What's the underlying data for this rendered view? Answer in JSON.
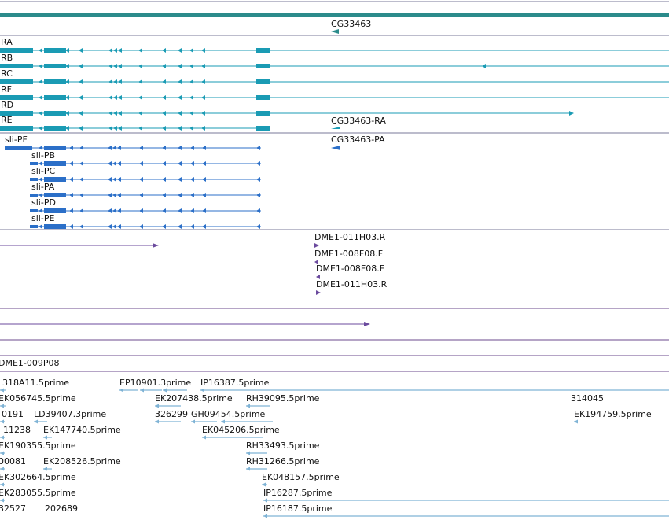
{
  "colors": {
    "gene_track": "#2b8b8b",
    "transcript": "#1a9bb4",
    "protein": "#2b6fc8",
    "clone": "#6b4a9e",
    "est": "#7fb3d5",
    "separator": "#7a7a9a"
  },
  "gene": {
    "name": "CG33463"
  },
  "transcripts": [
    {
      "label": "RA"
    },
    {
      "label": "RB"
    },
    {
      "label": "RC"
    },
    {
      "label": "RF"
    },
    {
      "label": "RD"
    },
    {
      "label": "RE"
    }
  ],
  "cg_transcript_label": "CG33463-RA",
  "cg_protein_label": "CG33463-PA",
  "proteins": [
    {
      "label": "sli-PF"
    },
    {
      "label": "sli-PB"
    },
    {
      "label": "sli-PC"
    },
    {
      "label": "sli-PA"
    },
    {
      "label": "sli-PD"
    },
    {
      "label": "sli-PE"
    }
  ],
  "clones": [
    {
      "label": "DME1-011H03.R"
    },
    {
      "label": "DME1-008F08.F"
    },
    {
      "label": "DME1-008F08.F"
    },
    {
      "label": "DME1-011H03.R"
    }
  ],
  "bac_label": "DME1-009P08",
  "ests": [
    "318A11.5prime",
    "EP10901.3prime",
    "IP16387.5prime",
    "EK056745.5prime",
    "EK207438.5prime",
    "RH39095.5prime",
    "314045",
    "0191",
    "LD39407.3prime",
    "326299",
    "GH09454.5prime",
    "EK194759.5prime",
    "11238",
    "EK147740.5prime",
    "EK045206.5prime",
    "EK190355.5prime",
    "RH33493.5prime",
    "00081",
    "EK208526.5prime",
    "RH31266.5prime",
    "EK302664.5prime",
    "EK048157.5prime",
    "EK283055.5prime",
    "IP16287.5prime",
    "32527",
    "202689",
    "IP16187.5prime"
  ]
}
